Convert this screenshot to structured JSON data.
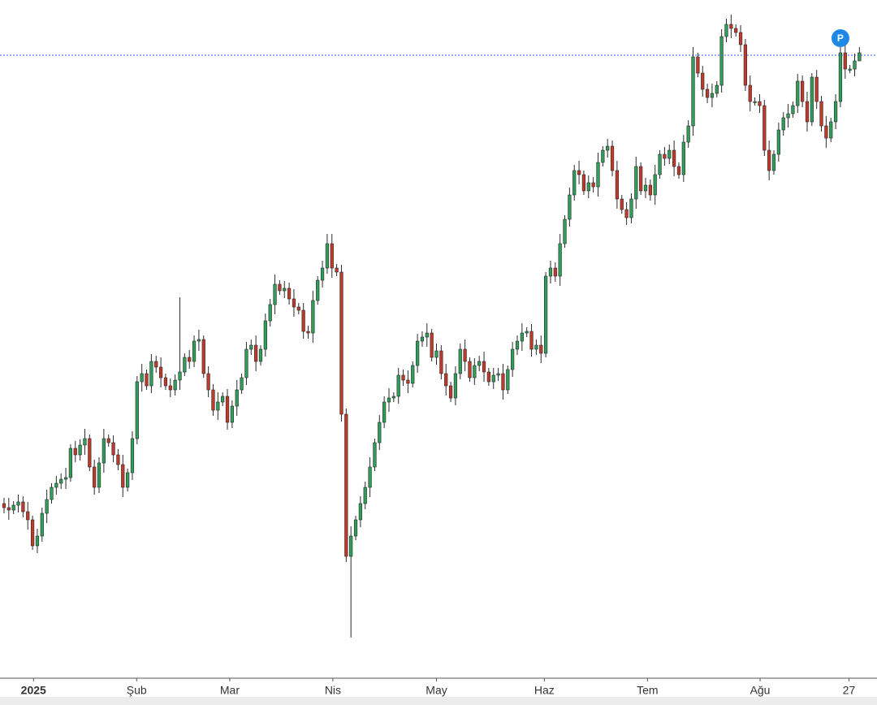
{
  "chart_data": {
    "type": "candlestick",
    "up_color": "#2f9e5a",
    "down_color": "#c0392b",
    "ylim": [
      0,
      835
    ],
    "xlim": [
      -0.85,
      183.7
    ],
    "xticks": [
      {
        "value": 6.2,
        "label": "2025"
      },
      {
        "value": 27.9,
        "label": "Şub"
      },
      {
        "value": 47.5,
        "label": "Mar"
      },
      {
        "value": 69.2,
        "label": "Nis"
      },
      {
        "value": 91,
        "label": "May"
      },
      {
        "value": 113.7,
        "label": "Haz"
      },
      {
        "value": 135.4,
        "label": "Tem"
      },
      {
        "value": 159.1,
        "label": "Ağu"
      },
      {
        "value": 177.8,
        "label": "27"
      }
    ],
    "price_line": 767,
    "price_line_color": "#2962ff",
    "marker_label": "P",
    "open": [
      215,
      210,
      207,
      213,
      217,
      205,
      195,
      163,
      175,
      203,
      220,
      235,
      240,
      245,
      247,
      283,
      275,
      287,
      295,
      260,
      235,
      265,
      295,
      290,
      275,
      263,
      235,
      253,
      295,
      365,
      375,
      360,
      390,
      383,
      370,
      360,
      355,
      367,
      377,
      395,
      390,
      415,
      417,
      375,
      355,
      330,
      340,
      347,
      315,
      335,
      355,
      370,
      405,
      410,
      390,
      405,
      440,
      460,
      485,
      477,
      480,
      467,
      457,
      453,
      427,
      425,
      465,
      490,
      505,
      535,
      505,
      500,
      325,
      150,
      175,
      195,
      215,
      235,
      260,
      290,
      315,
      340,
      345,
      347,
      373,
      367,
      363,
      385,
      415,
      420,
      425,
      395,
      403,
      375,
      360,
      345,
      375,
      405,
      390,
      370,
      385,
      390,
      377,
      365,
      373,
      375,
      355,
      380,
      405,
      415,
      425,
      427,
      405,
      410,
      400,
      495,
      505,
      495,
      535,
      565,
      595,
      625,
      620,
      600,
      610,
      605,
      635,
      650,
      655,
      625,
      590,
      577,
      567,
      590,
      630,
      600,
      607,
      595,
      620,
      645,
      640,
      650,
      630,
      620,
      660,
      680,
      765,
      745,
      725,
      715,
      720,
      730,
      790,
      805,
      800,
      795,
      780,
      730,
      710,
      710,
      705,
      650,
      625,
      645,
      675,
      690,
      695,
      705,
      735,
      710,
      685,
      740,
      710,
      680,
      665,
      685,
      710,
      770,
      750,
      750,
      760
    ],
    "high": [
      222,
      222,
      218,
      226,
      224,
      217,
      200,
      184,
      210,
      232,
      240,
      249,
      252,
      259,
      288,
      292,
      294,
      307,
      300,
      269,
      272,
      307,
      300,
      299,
      282,
      275,
      258,
      304,
      372,
      387,
      380,
      399,
      397,
      395,
      375,
      369,
      374,
      469,
      400,
      404,
      422,
      429,
      422,
      384,
      362,
      352,
      352,
      356,
      342,
      367,
      375,
      414,
      417,
      422,
      410,
      449,
      467,
      497,
      490,
      489,
      487,
      479,
      462,
      462,
      434,
      477,
      495,
      514,
      547,
      547,
      510,
      509,
      332,
      187,
      200,
      224,
      242,
      272,
      295,
      324,
      347,
      357,
      352,
      382,
      380,
      379,
      390,
      424,
      427,
      437,
      430,
      412,
      410,
      387,
      365,
      384,
      412,
      417,
      395,
      394,
      397,
      402,
      382,
      382,
      382,
      387,
      385,
      414,
      422,
      437,
      432,
      436,
      417,
      422,
      500,
      514,
      512,
      547,
      570,
      604,
      632,
      637,
      625,
      619,
      617,
      647,
      655,
      664,
      662,
      637,
      595,
      586,
      597,
      642,
      635,
      616,
      614,
      632,
      650,
      654,
      657,
      662,
      635,
      669,
      687,
      777,
      770,
      754,
      732,
      732,
      735,
      799,
      812,
      817,
      805,
      804,
      787,
      742,
      715,
      719,
      712,
      662,
      650,
      684,
      697,
      707,
      710,
      744,
      742,
      722,
      745,
      749,
      717,
      692,
      690,
      719,
      777,
      782,
      755,
      769,
      777
    ],
    "low": [
      203,
      195,
      202,
      204,
      198,
      183,
      158,
      154,
      168,
      191,
      215,
      226,
      233,
      233,
      242,
      266,
      268,
      275,
      255,
      226,
      228,
      253,
      285,
      266,
      256,
      223,
      230,
      244,
      288,
      353,
      355,
      351,
      376,
      358,
      355,
      346,
      348,
      355,
      372,
      381,
      383,
      403,
      370,
      346,
      323,
      318,
      335,
      306,
      308,
      323,
      350,
      361,
      398,
      378,
      385,
      396,
      433,
      448,
      472,
      468,
      460,
      445,
      448,
      418,
      418,
      413,
      460,
      481,
      498,
      493,
      495,
      316,
      143,
      50,
      170,
      186,
      208,
      223,
      255,
      281,
      308,
      328,
      340,
      338,
      360,
      351,
      358,
      376,
      408,
      408,
      390,
      386,
      368,
      348,
      340,
      336,
      368,
      378,
      365,
      361,
      378,
      365,
      360,
      356,
      366,
      343,
      350,
      371,
      398,
      403,
      420,
      396,
      398,
      388,
      395,
      486,
      488,
      483,
      530,
      556,
      588,
      608,
      595,
      591,
      598,
      593,
      630,
      641,
      618,
      578,
      572,
      558,
      560,
      578,
      595,
      591,
      588,
      583,
      615,
      631,
      633,
      618,
      615,
      611,
      653,
      668,
      740,
      716,
      708,
      703,
      715,
      721,
      783,
      788,
      790,
      771,
      723,
      698,
      705,
      696,
      643,
      613,
      620,
      636,
      668,
      678,
      690,
      696,
      703,
      673,
      680,
      701,
      673,
      653,
      660,
      676,
      703,
      738,
      745,
      741,
      763
    ],
    "close": [
      210,
      207,
      213,
      217,
      205,
      195,
      163,
      175,
      203,
      220,
      235,
      240,
      245,
      247,
      283,
      275,
      287,
      295,
      260,
      235,
      265,
      295,
      290,
      275,
      263,
      235,
      253,
      295,
      365,
      375,
      360,
      390,
      383,
      370,
      360,
      355,
      367,
      377,
      395,
      390,
      415,
      417,
      375,
      355,
      330,
      340,
      347,
      315,
      335,
      355,
      370,
      405,
      410,
      390,
      405,
      440,
      460,
      485,
      477,
      480,
      467,
      457,
      453,
      427,
      425,
      465,
      490,
      505,
      535,
      505,
      500,
      325,
      150,
      175,
      195,
      215,
      235,
      260,
      290,
      315,
      340,
      345,
      347,
      373,
      367,
      363,
      385,
      415,
      420,
      425,
      395,
      403,
      375,
      360,
      345,
      375,
      405,
      390,
      370,
      385,
      390,
      377,
      365,
      373,
      375,
      355,
      380,
      405,
      415,
      425,
      427,
      405,
      410,
      400,
      495,
      505,
      495,
      535,
      565,
      595,
      625,
      620,
      600,
      610,
      605,
      635,
      650,
      655,
      625,
      590,
      577,
      567,
      590,
      630,
      600,
      607,
      595,
      620,
      645,
      640,
      650,
      630,
      620,
      660,
      680,
      765,
      745,
      725,
      715,
      720,
      730,
      790,
      805,
      800,
      795,
      780,
      730,
      710,
      710,
      705,
      650,
      625,
      645,
      675,
      690,
      695,
      705,
      735,
      710,
      685,
      740,
      710,
      680,
      665,
      685,
      710,
      770,
      750,
      750,
      760,
      770
    ]
  }
}
